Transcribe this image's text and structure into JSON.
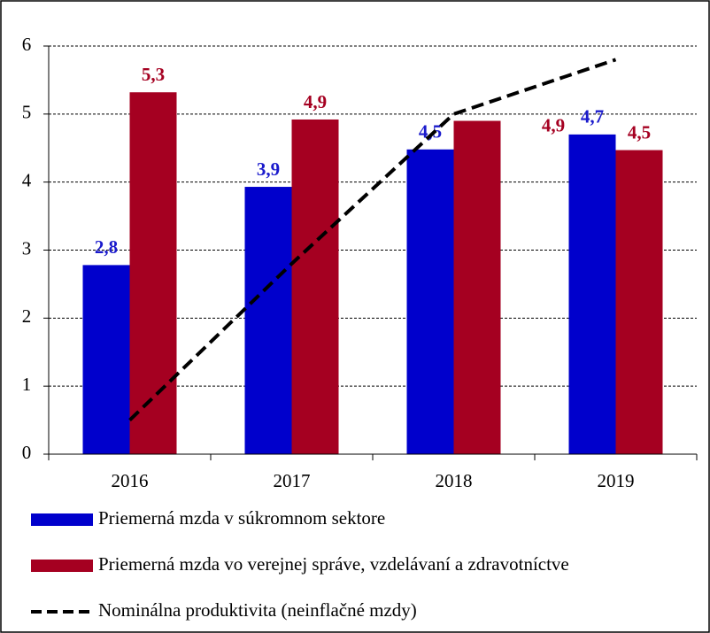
{
  "chart_data": {
    "type": "bar",
    "categories": [
      "2016",
      "2017",
      "2018",
      "2019"
    ],
    "series": [
      {
        "name": "Priemerná mzda v súkromnom sektore",
        "color": "#0000cc",
        "label_color": "#1a1acc",
        "values": [
          2.78,
          3.93,
          4.48,
          4.7
        ],
        "value_labels": [
          "2,8",
          "3,9",
          "4,5",
          "4,7"
        ]
      },
      {
        "name": "Priemerná mzda vo verejnej správe, vzdelávaní a zdravotníctve",
        "color": "#a50021",
        "label_color": "#a50021",
        "values": [
          5.32,
          4.92,
          4.9,
          4.47
        ],
        "value_labels": [
          "5,3",
          "4,9",
          "4,9",
          "4,5"
        ]
      },
      {
        "name": "Nominálna produktivita (neinflačné mzdy)",
        "type": "line",
        "color": "#000000",
        "values": [
          0.5,
          2.8,
          5.0,
          5.8
        ]
      }
    ],
    "ylim": [
      0,
      6
    ],
    "yticks": [
      0,
      1,
      2,
      3,
      4,
      5,
      6
    ],
    "grid": true
  }
}
